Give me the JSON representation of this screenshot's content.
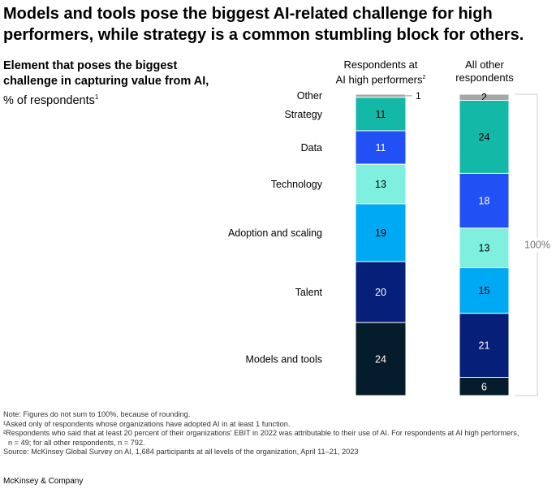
{
  "title": "Models and tools pose the biggest AI-related challenge for high performers, while strategy is a common stumbling block for others.",
  "subtitle": {
    "bold": "Element that poses the biggest challenge in capturing value from AI,",
    "normal": "% of respondents",
    "sup": "1"
  },
  "columns": {
    "high": {
      "line1": "Respondents at",
      "line2": "AI high performers",
      "sup": "2"
    },
    "other": {
      "line1": "All other",
      "line2": "respondents"
    }
  },
  "chart_data": {
    "type": "stacked-bar",
    "categories": [
      "Respondents at AI high performers",
      "All other respondents"
    ],
    "segments_top_to_bottom": [
      "Other",
      "Strategy",
      "Data",
      "Technology",
      "Adoption and scaling",
      "Talent",
      "Models and tools"
    ],
    "series": [
      {
        "name": "Other",
        "color": "#a6a6a6",
        "values": [
          1,
          2
        ]
      },
      {
        "name": "Strategy",
        "color": "#14b8a6",
        "values": [
          11,
          24
        ]
      },
      {
        "name": "Data",
        "color": "#2151f5",
        "values": [
          11,
          18
        ]
      },
      {
        "name": "Technology",
        "color": "#7ff0e0",
        "values": [
          13,
          13
        ]
      },
      {
        "name": "Adoption and scaling",
        "color": "#00a9f4",
        "values": [
          19,
          15
        ]
      },
      {
        "name": "Talent",
        "color": "#061f79",
        "values": [
          20,
          21
        ]
      },
      {
        "name": "Models and tools",
        "color": "#051c2c",
        "values": [
          24,
          6
        ]
      }
    ],
    "total_label": "100%",
    "ylim": [
      0,
      100
    ]
  },
  "notes": [
    "Note: Figures do not sum to 100%, because of rounding.",
    "¹Asked only of respondents whose organizations have adopted AI in at least 1 function.",
    "²Respondents who said that at least 20 percent of their organizations' EBIT in 2022 was attributable to their use of AI. For respondents at AI high performers,",
    "n = 49; for all other respondents, n = 792.",
    "Source: McKinsey Global Survey on AI, 1,684 participants at all levels of the organization, April 11–21, 2023"
  ],
  "brand": "McKinsey & Company"
}
